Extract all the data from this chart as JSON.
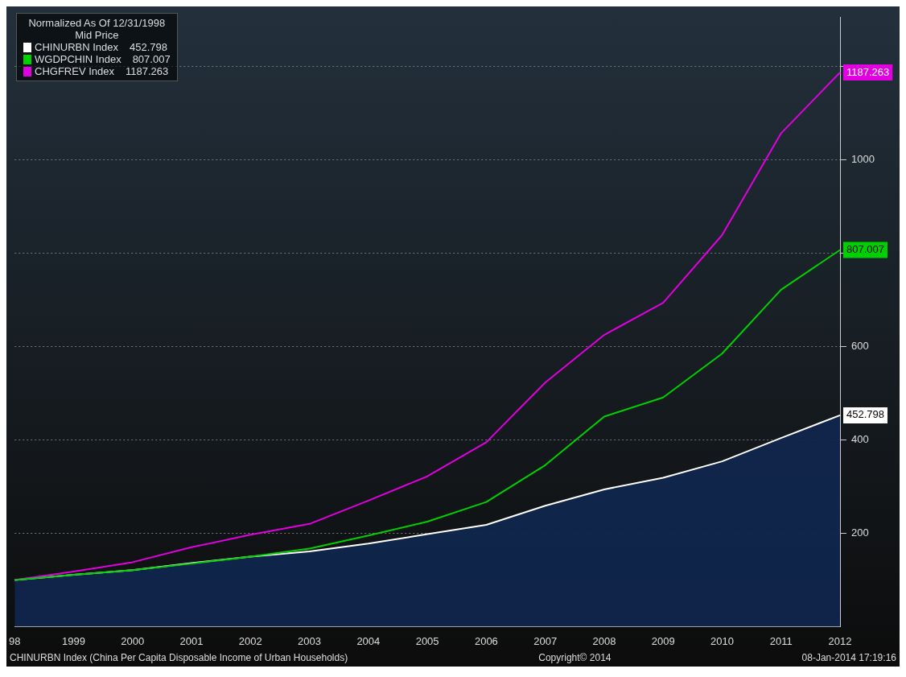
{
  "chart_data": {
    "type": "line",
    "legend_title": "Normalized As Of 12/31/1998\nMid Price",
    "categories": [
      "98",
      "1999",
      "2000",
      "2001",
      "2002",
      "2003",
      "2004",
      "2005",
      "2006",
      "2007",
      "2008",
      "2009",
      "2010",
      "2011",
      "2012"
    ],
    "series": [
      {
        "name": "CHINURBN Index",
        "type": "area",
        "color": "#ffffff",
        "values": [
          100,
          111,
          121,
          136,
          150,
          161,
          178,
          198,
          218,
          259,
          294,
          319,
          354,
          404,
          452.798
        ],
        "value_labels": [
          null,
          null,
          null,
          null,
          null,
          null,
          null,
          null,
          null,
          null,
          null,
          null,
          null,
          null,
          "452.798"
        ]
      },
      {
        "name": "WGDPCHIN Index",
        "color": "#00d000",
        "values": [
          100,
          111,
          121,
          135,
          150,
          167,
          195,
          225,
          267,
          346,
          450,
          491,
          585,
          722,
          807.007
        ],
        "value_labels": [
          null,
          null,
          null,
          null,
          null,
          null,
          null,
          null,
          null,
          null,
          null,
          null,
          null,
          null,
          "807.007"
        ]
      },
      {
        "name": "CHGFREV Index",
        "color": "#e000e0",
        "values": [
          100,
          118,
          138,
          170,
          197,
          220,
          270,
          322,
          395,
          523,
          625,
          694,
          839,
          1057,
          1187.263
        ],
        "value_labels": [
          null,
          null,
          null,
          null,
          null,
          null,
          null,
          null,
          null,
          null,
          null,
          null,
          null,
          null,
          "1187.263"
        ]
      }
    ],
    "ylim": [
      0,
      1305
    ],
    "yticks": [
      200,
      400,
      600,
      {
        "value": 800,
        "label": null
      },
      1000,
      {
        "value": 1200,
        "label": null
      }
    ],
    "grid": "y",
    "legend": "top left",
    "marker": "none",
    "annotations": [
      "CHINURBN Index (China Per Capita Disposable Income of Urban Households)",
      "Copyright© 2014",
      "08-Jan-2014 17:19:16"
    ]
  }
}
